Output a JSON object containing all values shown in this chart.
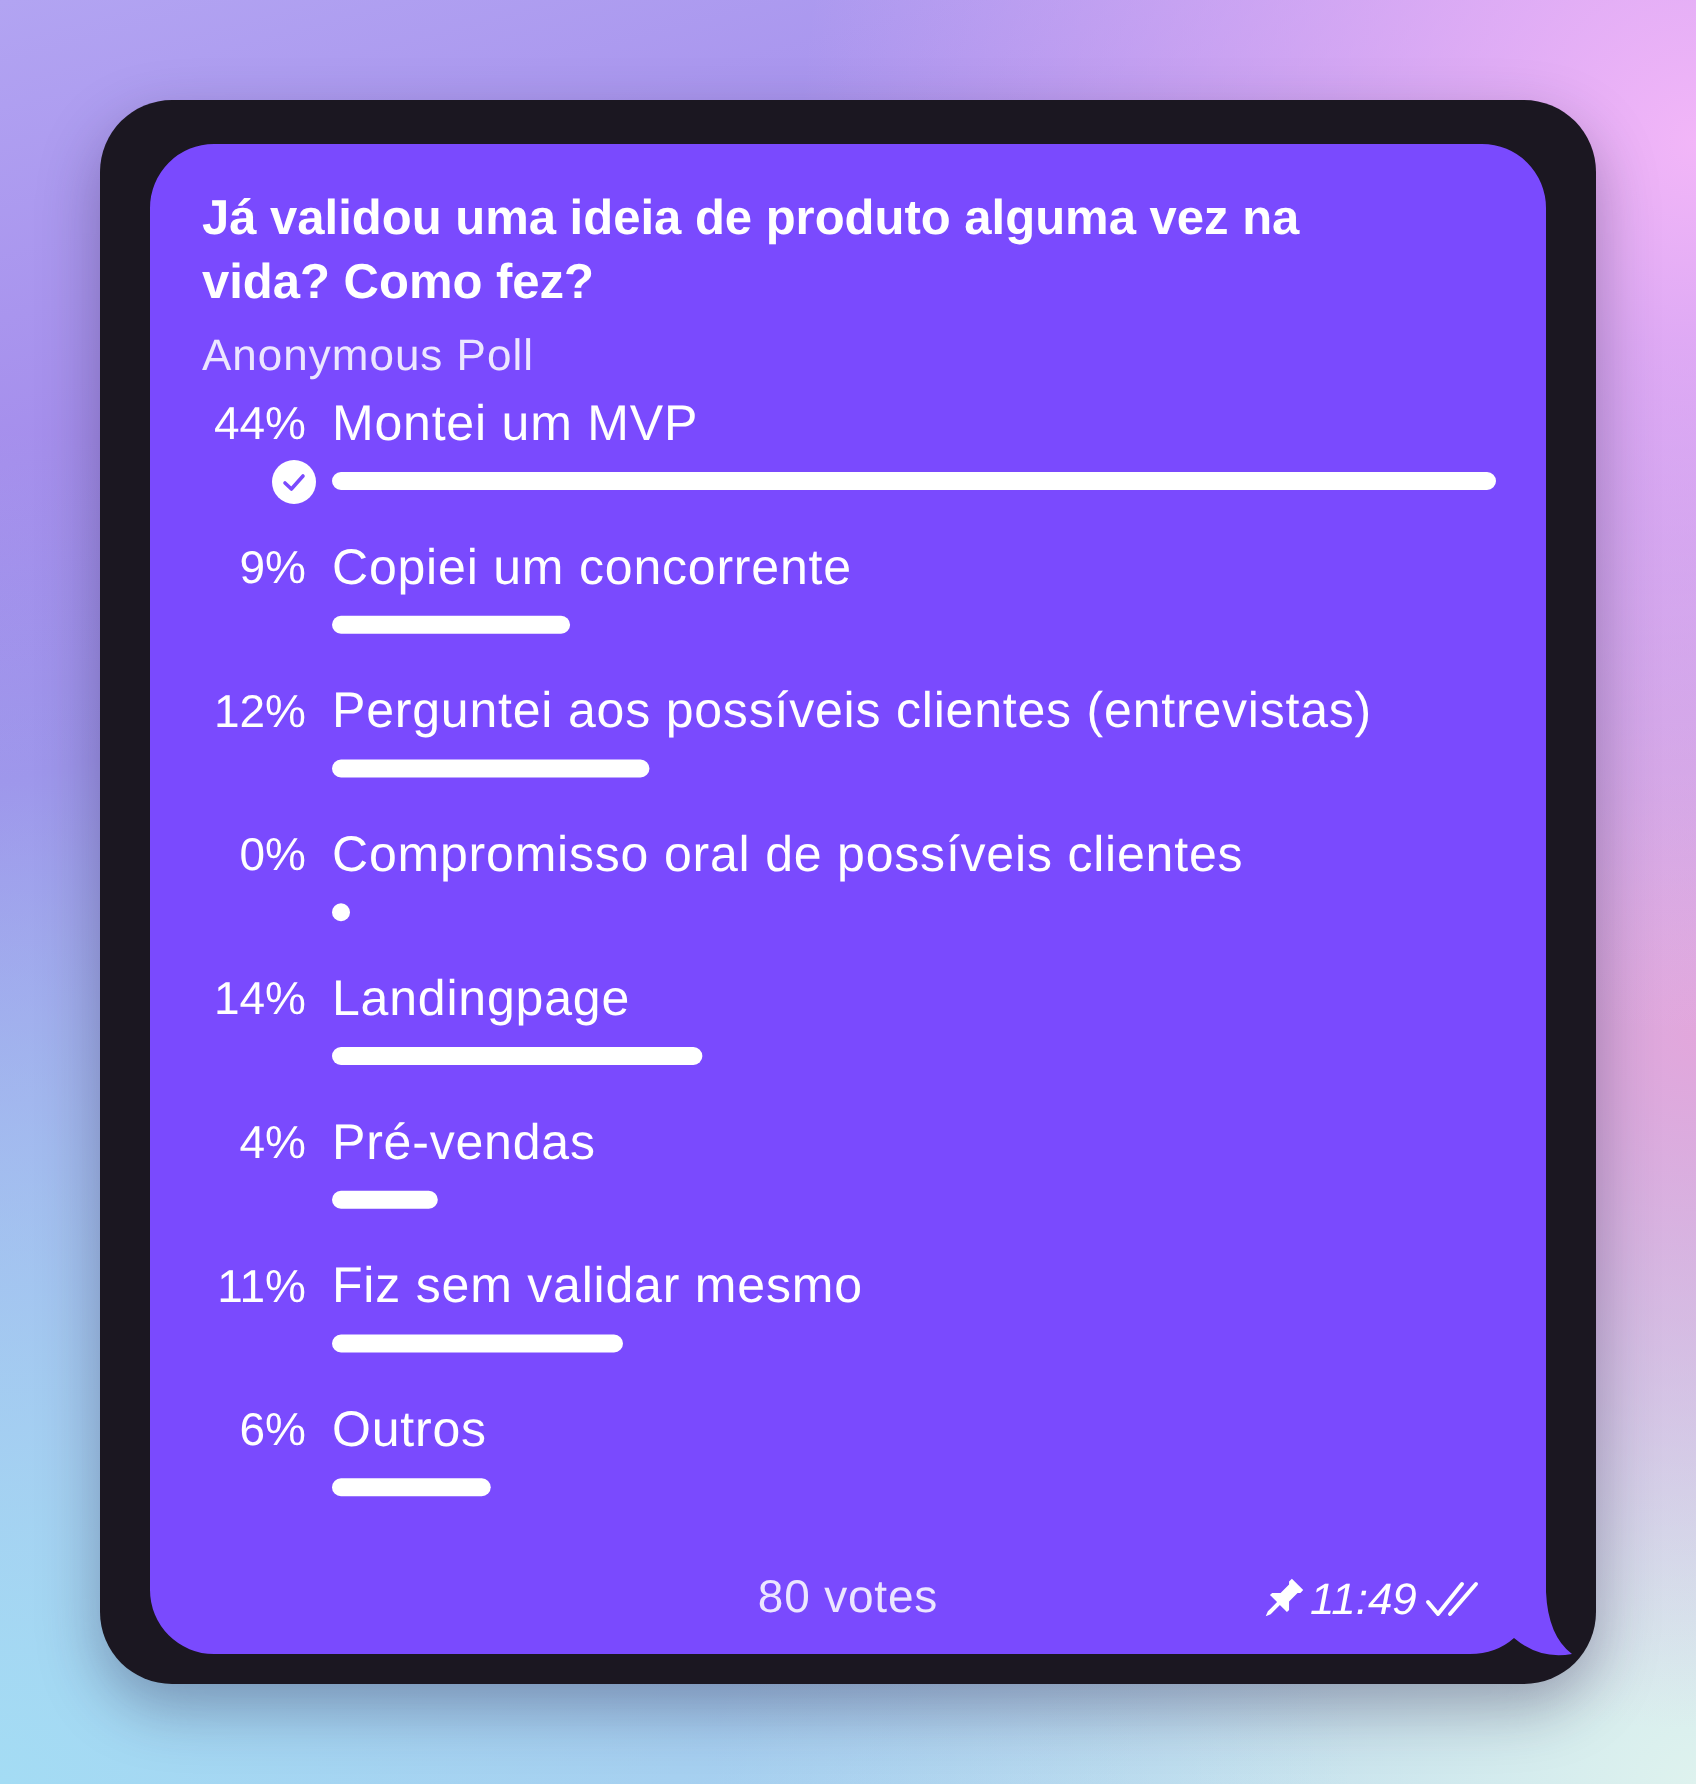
{
  "chart_data": {
    "type": "bar",
    "orientation": "horizontal",
    "title": "Já validou uma ideia de produto alguma vez na vida? Como fez?",
    "subtitle": "Anonymous Poll",
    "categories": [
      "Montei um MVP",
      "Copiei um concorrente",
      "Perguntei aos possíveis clientes (entrevistas)",
      "Compromisso oral de possíveis clientes",
      "Landingpage",
      "Pré-vendas",
      "Fiz sem validar mesmo",
      "Outros"
    ],
    "values": [
      44,
      9,
      12,
      0,
      14,
      4,
      11,
      6
    ],
    "value_labels": [
      "44%",
      "9%",
      "12%",
      "0%",
      "14%",
      "4%",
      "11%",
      "6%"
    ],
    "color": "#ffffff",
    "annotations": [
      "80 votes",
      "11:49"
    ]
  }
}
